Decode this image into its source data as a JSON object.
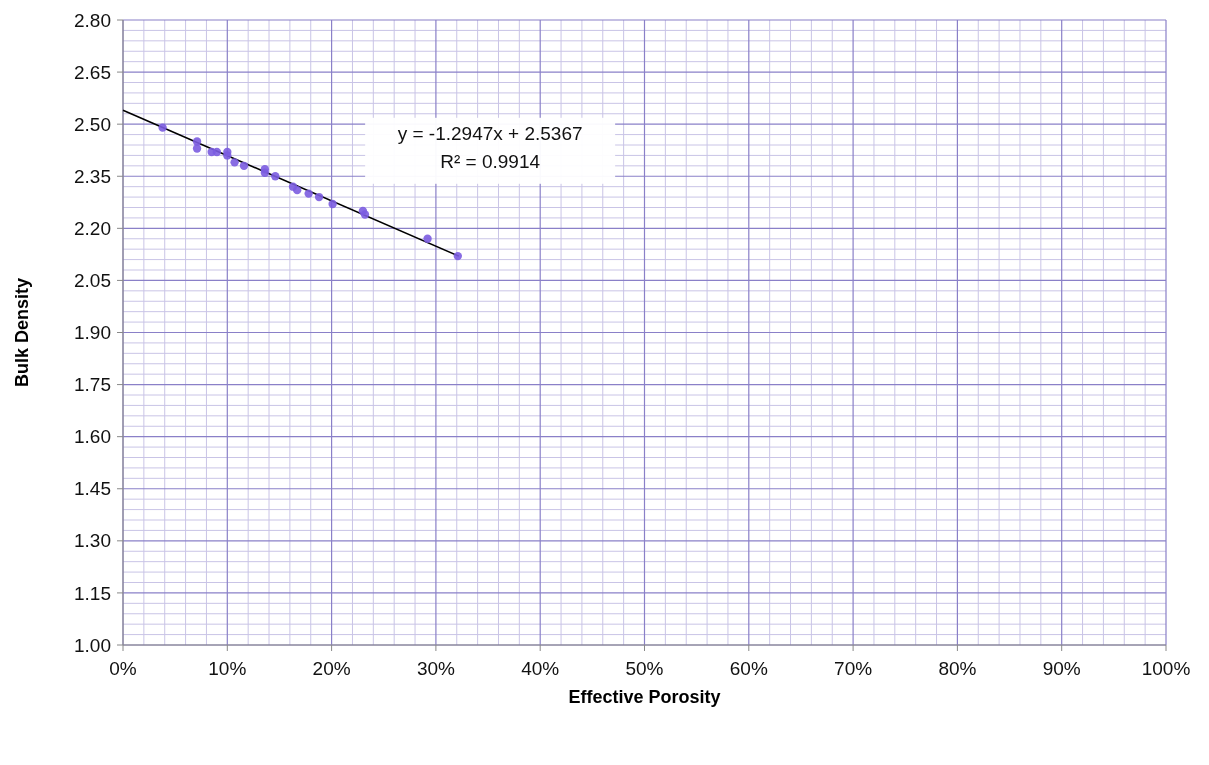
{
  "chart_data": {
    "type": "scatter",
    "xlabel": "Effective Porosity",
    "ylabel": "Bulk Density",
    "xlim": [
      0,
      1
    ],
    "ylim": [
      1.0,
      2.8
    ],
    "xticks": [
      {
        "value": 0,
        "label": "0%"
      },
      {
        "value": 0.1,
        "label": "10%"
      },
      {
        "value": 0.2,
        "label": "20%"
      },
      {
        "value": 0.3,
        "label": "30%"
      },
      {
        "value": 0.4,
        "label": "40%"
      },
      {
        "value": 0.5,
        "label": "50%"
      },
      {
        "value": 0.6,
        "label": "60%"
      },
      {
        "value": 0.7,
        "label": "70%"
      },
      {
        "value": 0.8,
        "label": "80%"
      },
      {
        "value": 0.9,
        "label": "90%"
      },
      {
        "value": 1,
        "label": "100%"
      }
    ],
    "yticks": [
      {
        "value": 1.0,
        "label": "1.00"
      },
      1.15,
      {
        "value": 1.3,
        "label": "1.30"
      },
      1.45,
      {
        "value": 1.6,
        "label": "1.60"
      },
      1.75,
      {
        "value": 1.9,
        "label": "1.90"
      },
      2.05,
      {
        "value": 2.2,
        "label": "2.20"
      },
      2.35,
      {
        "value": 2.5,
        "label": "2.50"
      },
      2.65,
      {
        "value": 2.8,
        "label": "2.80"
      }
    ],
    "grid": true,
    "marker": "circle",
    "series": [
      {
        "color": "#7b5ce0",
        "x": [
          0.038,
          0.071,
          0.071,
          0.085,
          0.09,
          0.1,
          0.1,
          0.107,
          0.116,
          0.136,
          0.136,
          0.146,
          0.163,
          0.167,
          0.178,
          0.188,
          0.201,
          0.23,
          0.232,
          0.292,
          0.321
        ],
        "values": [
          2.49,
          2.45,
          2.43,
          2.42,
          2.42,
          2.42,
          2.41,
          2.39,
          2.38,
          2.37,
          2.36,
          2.35,
          2.32,
          2.31,
          2.3,
          2.29,
          2.27,
          2.25,
          2.24,
          2.17,
          2.12
        ]
      },
      {
        "type": "line",
        "color": "#000000",
        "marker": "none",
        "x": [
          0,
          0.322
        ],
        "values": [
          2.54,
          2.12
        ]
      }
    ],
    "annotations": [
      "y = -1.2947x + 2.5367",
      "R² = 0.9914"
    ]
  }
}
